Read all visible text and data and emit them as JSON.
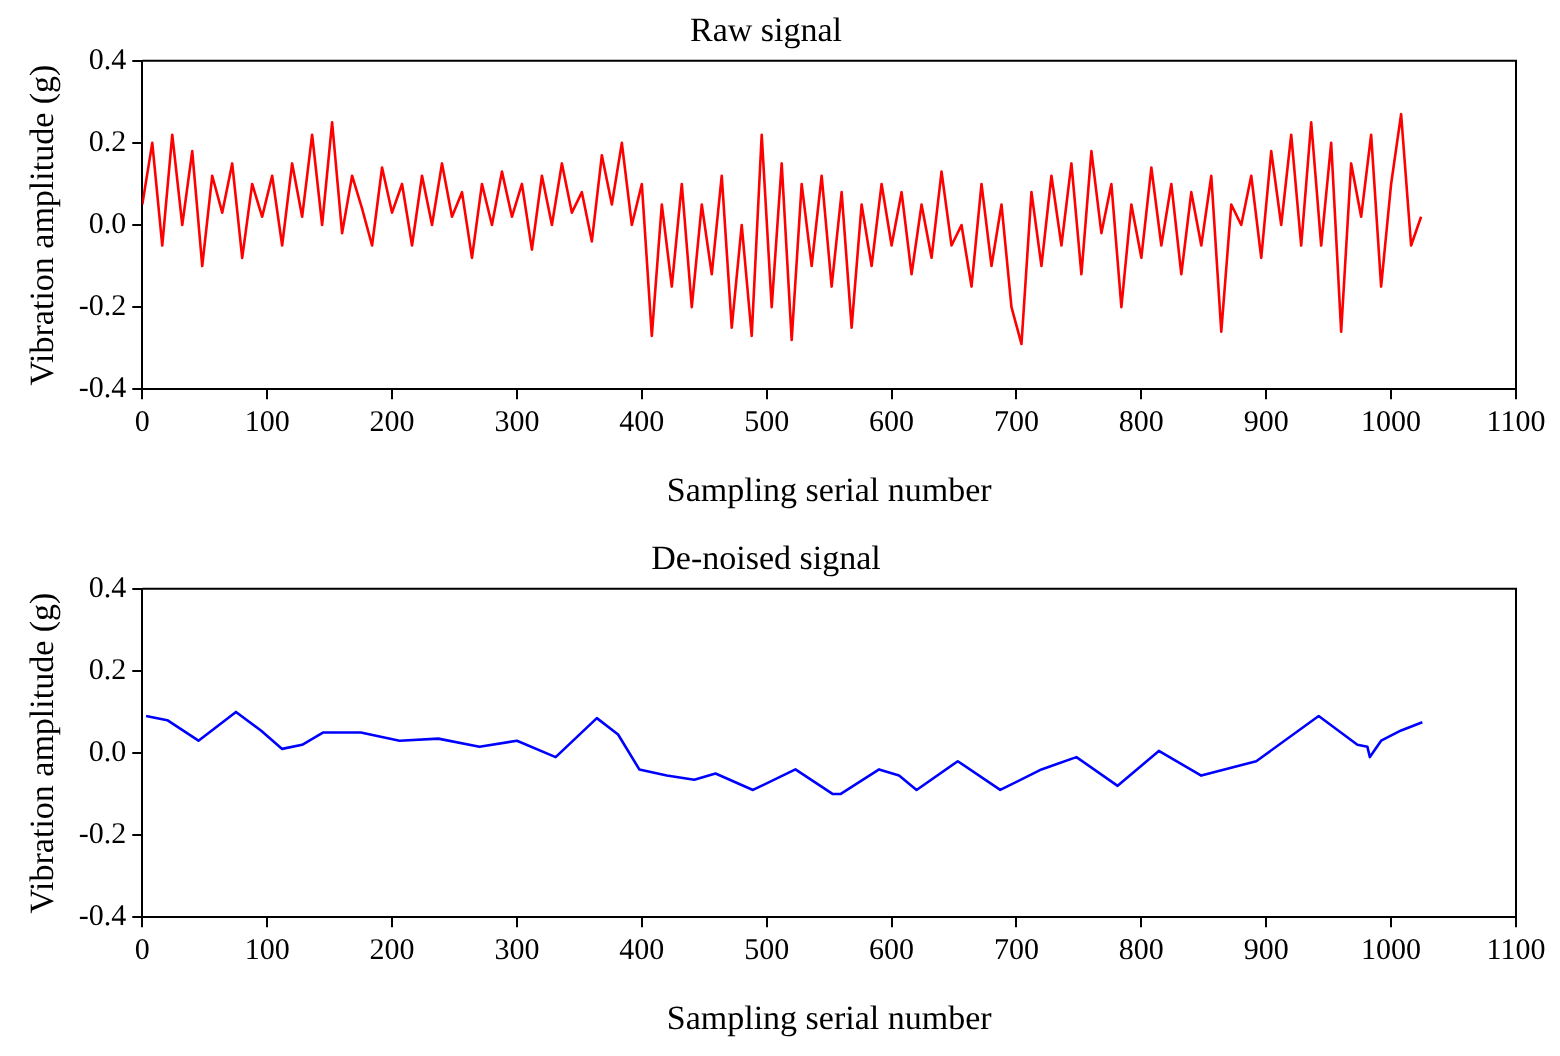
{
  "chart_data": [
    {
      "type": "line",
      "title": "Raw signal",
      "xlabel": "Sampling serial number",
      "ylabel": "Vibration amplitude (g)",
      "x": [
        0,
        8,
        16,
        24,
        32,
        40,
        48,
        56,
        64,
        72,
        80,
        88,
        96,
        104,
        112,
        120,
        128,
        136,
        144,
        152,
        160,
        168,
        176,
        184,
        192,
        200,
        208,
        216,
        224,
        232,
        240,
        248,
        256,
        264,
        272,
        280,
        288,
        296,
        304,
        312,
        320,
        328,
        336,
        344,
        352,
        360,
        368,
        376,
        384,
        392,
        400,
        408,
        416,
        424,
        432,
        440,
        448,
        456,
        464,
        472,
        480,
        488,
        496,
        504,
        512,
        520,
        528,
        536,
        544,
        552,
        560,
        568,
        576,
        584,
        592,
        600,
        608,
        616,
        624,
        632,
        640,
        648,
        656,
        664,
        672,
        680,
        688,
        696,
        704,
        712,
        720,
        728,
        736,
        744,
        752,
        760,
        768,
        776,
        784,
        792,
        800,
        808,
        816,
        824,
        832,
        840,
        848,
        856,
        864,
        872,
        880,
        888,
        896,
        904,
        912,
        920,
        928,
        936,
        944,
        952,
        960,
        968,
        976,
        984,
        992,
        1000,
        1008,
        1016,
        1024
      ],
      "series": [
        {
          "color": "#ff0000",
          "values": [
            0.05,
            0.2,
            -0.05,
            0.22,
            0.0,
            0.18,
            -0.1,
            0.12,
            0.03,
            0.15,
            -0.08,
            0.1,
            0.02,
            0.12,
            -0.05,
            0.15,
            0.02,
            0.22,
            0.0,
            0.25,
            -0.02,
            0.12,
            0.04,
            -0.05,
            0.14,
            0.03,
            0.1,
            -0.05,
            0.12,
            0.0,
            0.15,
            0.02,
            0.08,
            -0.08,
            0.1,
            0.0,
            0.13,
            0.02,
            0.1,
            -0.06,
            0.12,
            0.0,
            0.15,
            0.03,
            0.08,
            -0.04,
            0.17,
            0.05,
            0.2,
            0.0,
            0.1,
            -0.27,
            0.05,
            -0.15,
            0.1,
            -0.2,
            0.05,
            -0.12,
            0.12,
            -0.25,
            0.0,
            -0.27,
            0.22,
            -0.2,
            0.15,
            -0.28,
            0.1,
            -0.1,
            0.12,
            -0.15,
            0.08,
            -0.25,
            0.05,
            -0.1,
            0.1,
            -0.05,
            0.08,
            -0.12,
            0.05,
            -0.08,
            0.13,
            -0.05,
            0.0,
            -0.15,
            0.1,
            -0.1,
            0.05,
            -0.2,
            -0.29,
            0.08,
            -0.1,
            0.12,
            -0.05,
            0.15,
            -0.12,
            0.18,
            -0.02,
            0.1,
            -0.2,
            0.05,
            -0.08,
            0.14,
            -0.05,
            0.1,
            -0.12,
            0.08,
            -0.05,
            0.12,
            -0.26,
            0.05,
            0.0,
            0.12,
            -0.08,
            0.18,
            0.0,
            0.22,
            -0.05,
            0.25,
            -0.05,
            0.2,
            -0.26,
            0.15,
            0.02,
            0.22,
            -0.15,
            0.1,
            0.27,
            -0.05,
            0.02
          ]
        }
      ],
      "xlim": [
        0,
        1100
      ],
      "xticks": [
        0,
        100,
        200,
        300,
        400,
        500,
        600,
        700,
        800,
        900,
        1000,
        1100
      ],
      "ylim": [
        -0.4,
        0.4
      ],
      "yticks": [
        -0.4,
        -0.2,
        {
          "value": 0,
          "label": "0.0"
        },
        0.2,
        0.4
      ],
      "legend": false,
      "grid": false
    },
    {
      "type": "line",
      "title": "De-noised signal",
      "xlabel": "Sampling serial number",
      "ylabel": "Vibration amplitude (g)",
      "x": [
        3,
        20,
        45,
        75,
        95,
        112,
        128,
        145,
        175,
        206,
        237,
        270,
        300,
        331,
        364,
        381,
        398,
        420,
        442,
        459,
        489,
        523,
        553,
        559,
        590,
        606,
        620,
        653,
        687,
        720,
        748,
        781,
        814,
        848,
        892,
        942,
        973,
        981,
        983,
        992,
        1008,
        1025
      ],
      "series": [
        {
          "color": "#0000ff",
          "values": [
            0.09,
            0.08,
            0.03,
            0.1,
            0.055,
            0.01,
            0.02,
            0.05,
            0.05,
            0.03,
            0.035,
            0.015,
            0.03,
            -0.01,
            0.085,
            0.045,
            -0.04,
            -0.055,
            -0.065,
            -0.05,
            -0.09,
            -0.04,
            -0.1,
            -0.1,
            -0.04,
            -0.055,
            -0.09,
            -0.02,
            -0.09,
            -0.04,
            -0.01,
            -0.08,
            0.005,
            -0.055,
            -0.02,
            0.09,
            0.02,
            0.015,
            -0.01,
            0.03,
            0.055,
            0.075
          ]
        }
      ],
      "xlim": [
        0,
        1100
      ],
      "xticks": [
        0,
        100,
        200,
        300,
        400,
        500,
        600,
        700,
        800,
        900,
        1000,
        1100
      ],
      "ylim": [
        -0.4,
        0.4
      ],
      "yticks": [
        -0.4,
        -0.2,
        {
          "value": 0,
          "label": "0.0"
        },
        0.2,
        0.4
      ],
      "legend": false,
      "grid": false
    }
  ]
}
